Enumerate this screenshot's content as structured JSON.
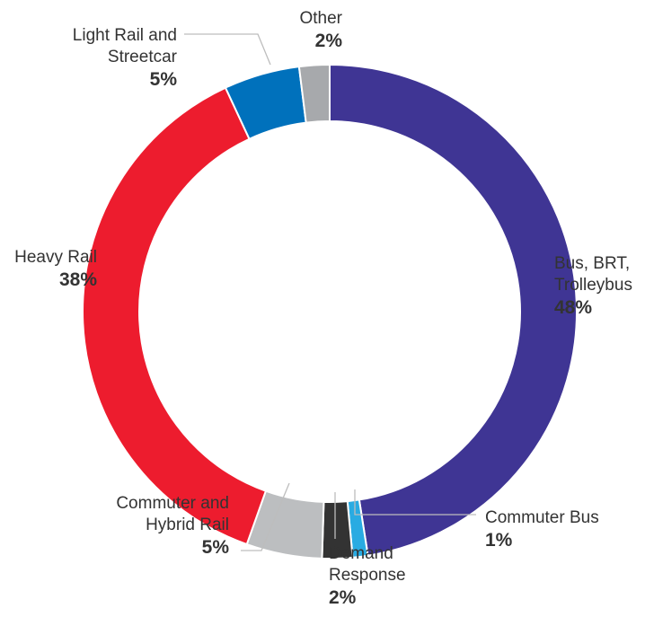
{
  "chart_data": {
    "type": "pie",
    "donut": true,
    "slices": [
      {
        "name_lines": [
          "Bus, BRT,",
          "Trolleybus"
        ],
        "value": 48,
        "label": "48%",
        "color": "#3f3594"
      },
      {
        "name_lines": [
          "Commuter Bus"
        ],
        "value": 1,
        "label": "1%",
        "color": "#29abe2"
      },
      {
        "name_lines": [
          "Demand",
          "Response"
        ],
        "value": 2,
        "label": "2%",
        "color": "#333333"
      },
      {
        "name_lines": [
          "Commuter and",
          "Hybrid Rail"
        ],
        "value": 5,
        "label": "5%",
        "color": "#bcbec0"
      },
      {
        "name_lines": [
          "Heavy Rail"
        ],
        "value": 38,
        "label": "38%",
        "color": "#ed1c2e"
      },
      {
        "name_lines": [
          "Light Rail and",
          "Streetcar"
        ],
        "value": 5,
        "label": "5%",
        "color": "#0071bc"
      },
      {
        "name_lines": [
          "Other"
        ],
        "value": 2,
        "label": "2%",
        "color": "#a7a9ac"
      }
    ]
  }
}
